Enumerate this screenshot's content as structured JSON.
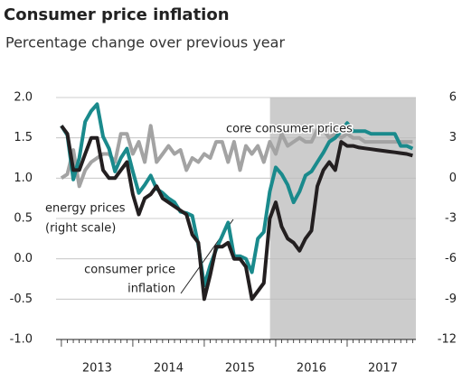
{
  "chart_data": {
    "type": "line",
    "title": "Consumer price inflation",
    "subtitle": "Percentage change over previous year",
    "x": [
      2013.0,
      2013.083,
      2013.167,
      2013.25,
      2013.333,
      2013.417,
      2013.5,
      2013.583,
      2013.667,
      2013.75,
      2013.833,
      2013.917,
      2014.0,
      2014.083,
      2014.167,
      2014.25,
      2014.333,
      2014.417,
      2014.5,
      2014.583,
      2014.667,
      2014.75,
      2014.833,
      2014.917,
      2015.0,
      2015.083,
      2015.167,
      2015.25,
      2015.333,
      2015.417,
      2015.5,
      2015.583,
      2015.667,
      2015.75,
      2015.833,
      2015.917,
      2016.0,
      2016.083,
      2016.167,
      2016.25,
      2016.333,
      2016.417,
      2016.5,
      2016.583,
      2016.667,
      2016.75,
      2016.833,
      2016.917,
      2017.0,
      2017.083,
      2017.167,
      2017.25,
      2017.333,
      2017.417,
      2017.5,
      2017.583,
      2017.667,
      2017.75,
      2017.833,
      2017.917
    ],
    "series": [
      {
        "name": "core consumer prices",
        "color": "#a3a3a3",
        "axis": "y",
        "values": [
          1.0,
          1.05,
          1.35,
          0.9,
          1.1,
          1.2,
          1.25,
          1.3,
          1.3,
          1.2,
          1.55,
          1.55,
          1.3,
          1.45,
          1.2,
          1.65,
          1.2,
          1.3,
          1.4,
          1.3,
          1.35,
          1.1,
          1.25,
          1.2,
          1.3,
          1.25,
          1.45,
          1.45,
          1.2,
          1.45,
          1.1,
          1.4,
          1.3,
          1.4,
          1.2,
          1.45,
          1.3,
          1.55,
          1.4,
          1.45,
          1.5,
          1.45,
          1.45,
          1.6,
          1.6,
          1.5,
          1.55,
          1.5,
          1.55,
          1.5,
          1.5,
          1.45,
          1.45,
          1.45,
          1.45,
          1.45,
          1.45,
          1.45,
          1.45,
          1.45
        ]
      },
      {
        "name": "energy prices (right scale)",
        "color": "#1a8a8c",
        "axis": "y2",
        "values": [
          3.9,
          3.2,
          -0.1,
          1.5,
          4.2,
          5.0,
          5.5,
          3.1,
          2.2,
          0.5,
          1.5,
          2.2,
          0.5,
          -1.1,
          -0.5,
          0.2,
          -0.8,
          -1.1,
          -1.5,
          -1.8,
          -2.5,
          -2.6,
          -2.8,
          -5.0,
          -8.0,
          -6.5,
          -5.3,
          -4.3,
          -3.3,
          -5.8,
          -5.8,
          -6.0,
          -7.0,
          -4.5,
          -4.0,
          -1.0,
          0.8,
          0.3,
          -0.5,
          -1.8,
          -1.0,
          0.2,
          0.5,
          1.2,
          1.9,
          2.7,
          3.0,
          3.5,
          4.1,
          3.5,
          3.5,
          3.5,
          3.3,
          3.3,
          3.3,
          3.3,
          3.3,
          2.4,
          2.4,
          2.2
        ]
      },
      {
        "name": "consumer price inflation",
        "color": "#231f20",
        "axis": "y",
        "values": [
          1.65,
          1.55,
          1.1,
          1.1,
          1.3,
          1.5,
          1.5,
          1.1,
          1.0,
          1.0,
          1.1,
          1.2,
          0.8,
          0.55,
          0.75,
          0.8,
          0.9,
          0.75,
          0.7,
          0.65,
          0.6,
          0.55,
          0.3,
          0.2,
          -0.5,
          -0.2,
          0.15,
          0.15,
          0.2,
          0.0,
          0.0,
          -0.1,
          -0.5,
          -0.4,
          -0.3,
          0.5,
          0.7,
          0.4,
          0.25,
          0.2,
          0.1,
          0.25,
          0.35,
          0.9,
          1.1,
          1.2,
          1.1,
          1.45,
          1.4,
          1.4,
          1.38,
          1.37,
          1.36,
          1.35,
          1.34,
          1.33,
          1.32,
          1.31,
          1.3,
          1.28
        ]
      }
    ],
    "annotations": [
      {
        "lines": [
          "core consumer prices"
        ]
      },
      {
        "lines": [
          "energy prices",
          "(right scale)"
        ]
      },
      {
        "lines": [
          "consumer price",
          "inflation"
        ]
      }
    ],
    "xlim": [
      2012.9,
      2018.0
    ],
    "xticks": [
      {
        "value": 2013.5,
        "label": "2013"
      },
      {
        "value": 2014.5,
        "label": "2014"
      },
      {
        "value": 2015.5,
        "label": "2015"
      },
      {
        "value": 2016.5,
        "label": "2016"
      },
      {
        "value": 2017.5,
        "label": "2017"
      }
    ],
    "ylim": [
      -1.0,
      2.0
    ],
    "yticks": [
      {
        "value": 2.0,
        "label": "2.0"
      },
      {
        "value": 1.5,
        "label": "1.5"
      },
      {
        "value": 1.0,
        "label": "1.0"
      },
      {
        "value": 0.5,
        "label": "0.5"
      },
      {
        "value": 0.0,
        "label": "0.0"
      },
      {
        "value": -0.5,
        "label": "-0.5"
      },
      {
        "value": -1.0,
        "label": "-1.0"
      }
    ],
    "y2lim": [
      -12,
      6
    ],
    "y2ticks": [
      6,
      3,
      0,
      -3,
      -6,
      -9,
      -12
    ],
    "shaded_region": [
      2015.92,
      2018.0
    ],
    "shade_color": "#cccccc",
    "grid": true
  }
}
